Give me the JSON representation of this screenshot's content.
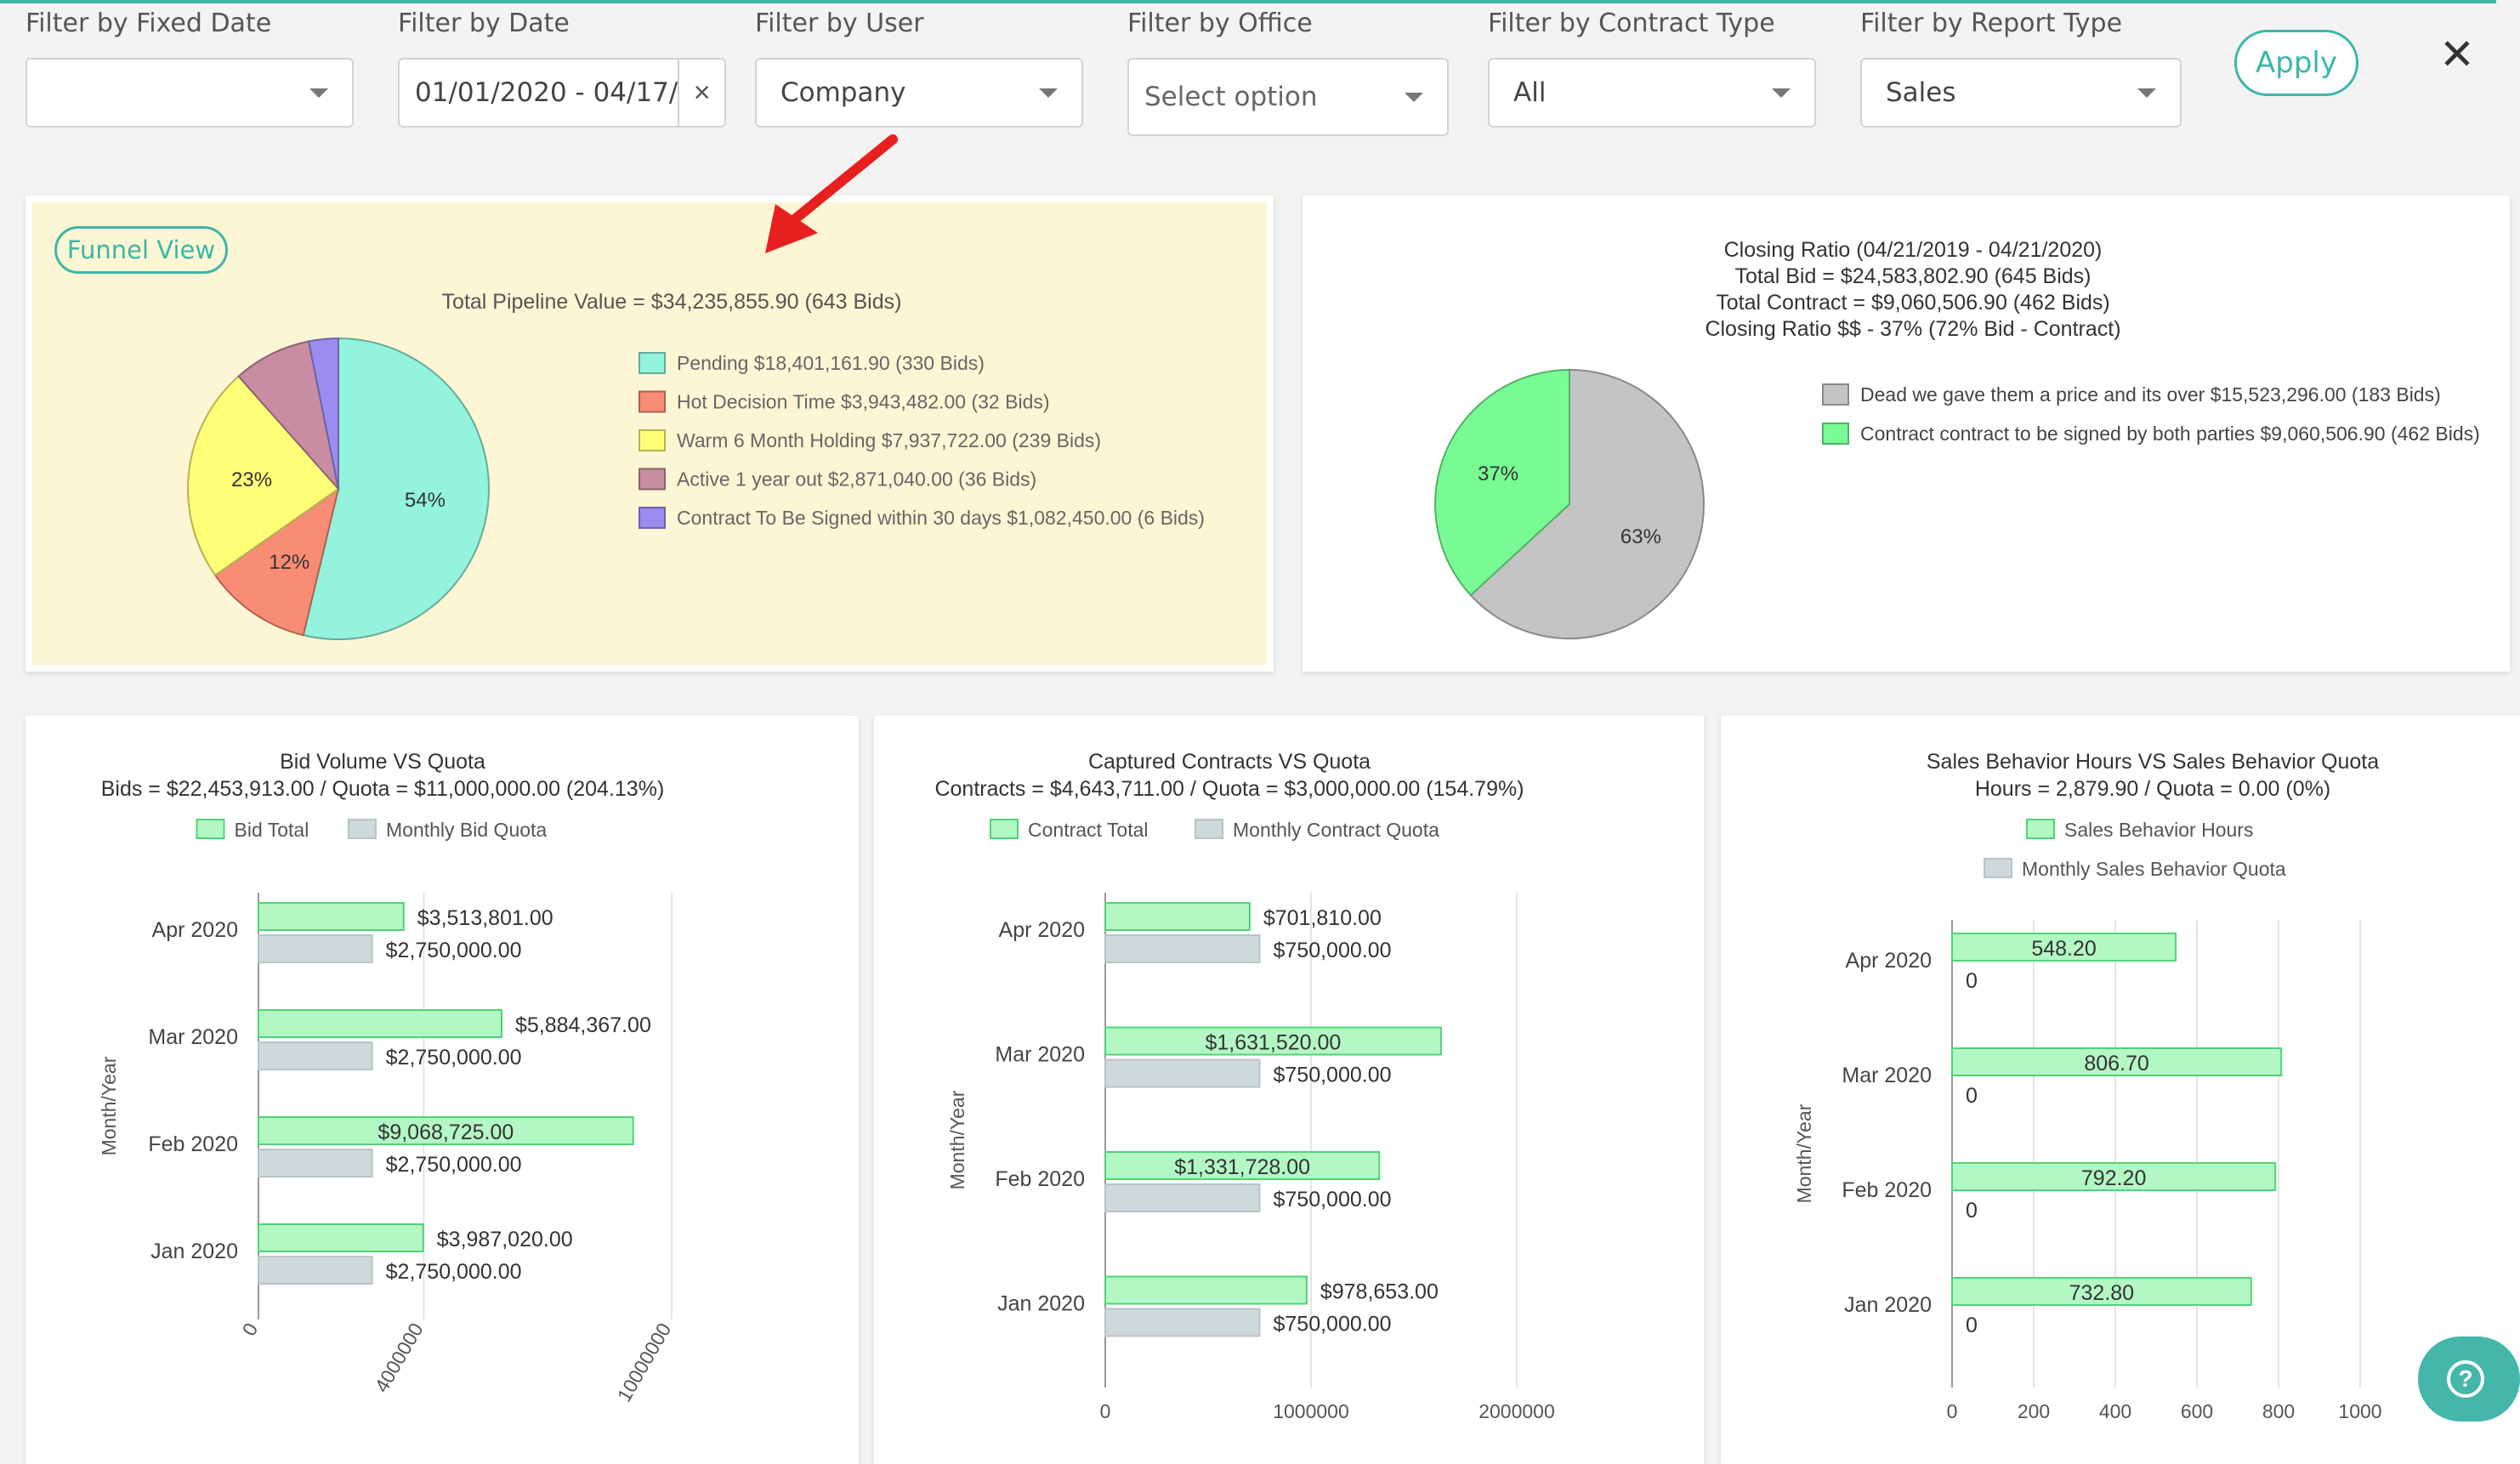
{
  "filters": [
    {
      "label": "Filter by Fixed Date",
      "value": ""
    },
    {
      "label": "Filter by Date",
      "value": "01/01/2020 - 04/17/"
    },
    {
      "label": "Filter by User",
      "value": "Company"
    },
    {
      "label": "Filter by Office",
      "value": "Select option"
    },
    {
      "label": "Filter by Contract Type",
      "value": "All"
    },
    {
      "label": "Filter by Report Type",
      "value": "Sales"
    }
  ],
  "date_clear": "×",
  "apply_label": "Apply",
  "close_label": "✕",
  "help_label": "?",
  "colors": {
    "accent": "#3bb6a8",
    "pending": "#93f3dd",
    "hot": "#f98c74",
    "warm": "#ffff77",
    "active": "#c88da3",
    "contract": "#9b8cf0",
    "dead": "#c4c4c4",
    "green": "#78fb94",
    "bar_green": "#b3f7c4",
    "bar_grey": "#cfd9db",
    "funnel_bg": "#fdf6d4"
  },
  "funnel": {
    "button_label": "Funnel View",
    "title": "Total Pipeline Value = $34,235,855.90 (643 Bids)",
    "chart_data": {
      "type": "pie",
      "slices": [
        {
          "label": "Pending $18,401,161.90 (330 Bids)",
          "value": 18401161.9,
          "pct_label": "54%"
        },
        {
          "label": "Hot Decision Time  $3,943,482.00 (32 Bids)",
          "value": 3943482.0,
          "pct_label": "12%"
        },
        {
          "label": "Warm 6 Month Holding $7,937,722.00 (239 Bids)",
          "value": 7937722.0,
          "pct_label": "23%"
        },
        {
          "label": "Active 1 year out $2,871,040.00 (36 Bids)",
          "value": 2871040.0,
          "pct_label": ""
        },
        {
          "label": "Contract To Be Signed within 30 days $1,082,450.00 (6 Bids)",
          "value": 1082450.0,
          "pct_label": ""
        }
      ]
    }
  },
  "closing": {
    "title_lines": [
      "Closing Ratio (04/21/2019 - 04/21/2020)",
      "Total Bid = $24,583,802.90 (645 Bids)",
      "Total Contract = $9,060,506.90 (462 Bids)",
      "Closing Ratio $$ - 37% (72% Bid - Contract)"
    ],
    "chart_data": {
      "type": "pie",
      "slices": [
        {
          "label": "Dead we gave them a price and its over $15,523,296.00 (183 Bids)",
          "value": 15523296.0,
          "pct_label": "63%"
        },
        {
          "label": "Contract contract to be signed by both parties $9,060,506.90 (462 Bids)",
          "value": 9060506.9,
          "pct_label": "37%"
        }
      ]
    }
  },
  "bar_charts": [
    {
      "title": "Bid Volume VS Quota",
      "subtitle": "Bids = $22,453,913.00 / Quota = $11,000,000.00 (204.13%)",
      "chart_data": {
        "type": "bar",
        "orientation": "horizontal",
        "ylabel": "Month/Year",
        "categories": [
          "Apr 2020",
          "Mar 2020",
          "Feb 2020",
          "Jan 2020"
        ],
        "xlim": [
          0,
          10000000
        ],
        "xticks": [
          "0",
          "4000000",
          "10000000"
        ],
        "xticks_rotated": true,
        "series": [
          {
            "name": "Bid Total",
            "values": [
              3513801.0,
              5884367.0,
              9068725.0,
              3987020.0
            ],
            "labels": [
              "$3,513,801.00",
              "$5,884,367.00",
              "$9,068,725.00",
              "$3,987,020.00"
            ]
          },
          {
            "name": "Monthly Bid Quota",
            "values": [
              2750000,
              2750000,
              2750000,
              2750000
            ],
            "labels": [
              "$2,750,000.00",
              "$2,750,000.00",
              "$2,750,000.00",
              "$2,750,000.00"
            ]
          }
        ]
      }
    },
    {
      "title": "Captured Contracts VS Quota",
      "subtitle": "Contracts = $4,643,711.00 / Quota = $3,000,000.00 (154.79%)",
      "chart_data": {
        "type": "bar",
        "orientation": "horizontal",
        "ylabel": "Month/Year",
        "categories": [
          "Apr 2020",
          "Mar 2020",
          "Feb 2020",
          "Jan 2020"
        ],
        "xlim": [
          0,
          2000000
        ],
        "xticks": [
          "0",
          "1000000",
          "2000000"
        ],
        "xticks_rotated": false,
        "series": [
          {
            "name": "Contract Total",
            "values": [
              701810.0,
              1631520.0,
              1331728.0,
              978653.0
            ],
            "labels": [
              "$701,810.00",
              "$1,631,520.00",
              "$1,331,728.00",
              "$978,653.00"
            ]
          },
          {
            "name": "Monthly Contract Quota",
            "values": [
              750000,
              750000,
              750000,
              750000
            ],
            "labels": [
              "$750,000.00",
              "$750,000.00",
              "$750,000.00",
              "$750,000.00"
            ]
          }
        ]
      }
    },
    {
      "title": "Sales Behavior Hours VS Sales Behavior Quota",
      "subtitle": "Hours = 2,879.90 / Quota = 0.00 (0%)",
      "chart_data": {
        "type": "bar",
        "orientation": "horizontal",
        "ylabel": "Month/Year",
        "categories": [
          "Apr 2020",
          "Mar 2020",
          "Feb 2020",
          "Jan 2020"
        ],
        "xlim": [
          0,
          1000
        ],
        "xticks": [
          "0",
          "200",
          "400",
          "600",
          "800",
          "1000"
        ],
        "xticks_rotated": false,
        "series": [
          {
            "name": "Sales Behavior Hours",
            "values": [
              548.2,
              806.7,
              792.2,
              732.8
            ],
            "labels": [
              "548.20",
              "806.70",
              "792.20",
              "732.80"
            ]
          },
          {
            "name": "Monthly Sales Behavior Quota",
            "values": [
              0,
              0,
              0,
              0
            ],
            "labels": [
              "0",
              "0",
              "0",
              "0"
            ]
          }
        ]
      }
    }
  ]
}
